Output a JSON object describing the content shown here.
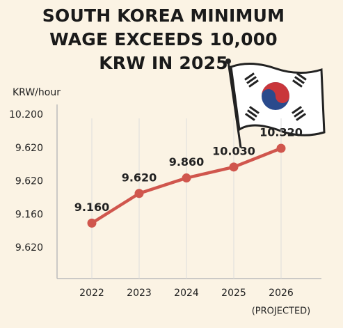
{
  "chart_data": {
    "type": "line",
    "title": "SOUTH KOREA MINIMUM WAGE EXCEEDS 10,000 KRW IN 2025",
    "y_axis_title": "KRW/hour",
    "y_axis_labels": [
      "10.200",
      "9.620",
      "9.620",
      "9.160",
      "9.620"
    ],
    "categories": [
      "2022",
      "2023",
      "2024",
      "2025",
      "2026"
    ],
    "annotation": "(PROJECTED)",
    "values": [
      9160,
      9620,
      9860,
      10030,
      10320
    ],
    "value_labels": [
      "9.160",
      "9.620",
      "9.860",
      "10.030",
      "10.320"
    ],
    "color": "#d0564d",
    "ylim": [
      8300,
      11000
    ],
    "grid": true
  }
}
